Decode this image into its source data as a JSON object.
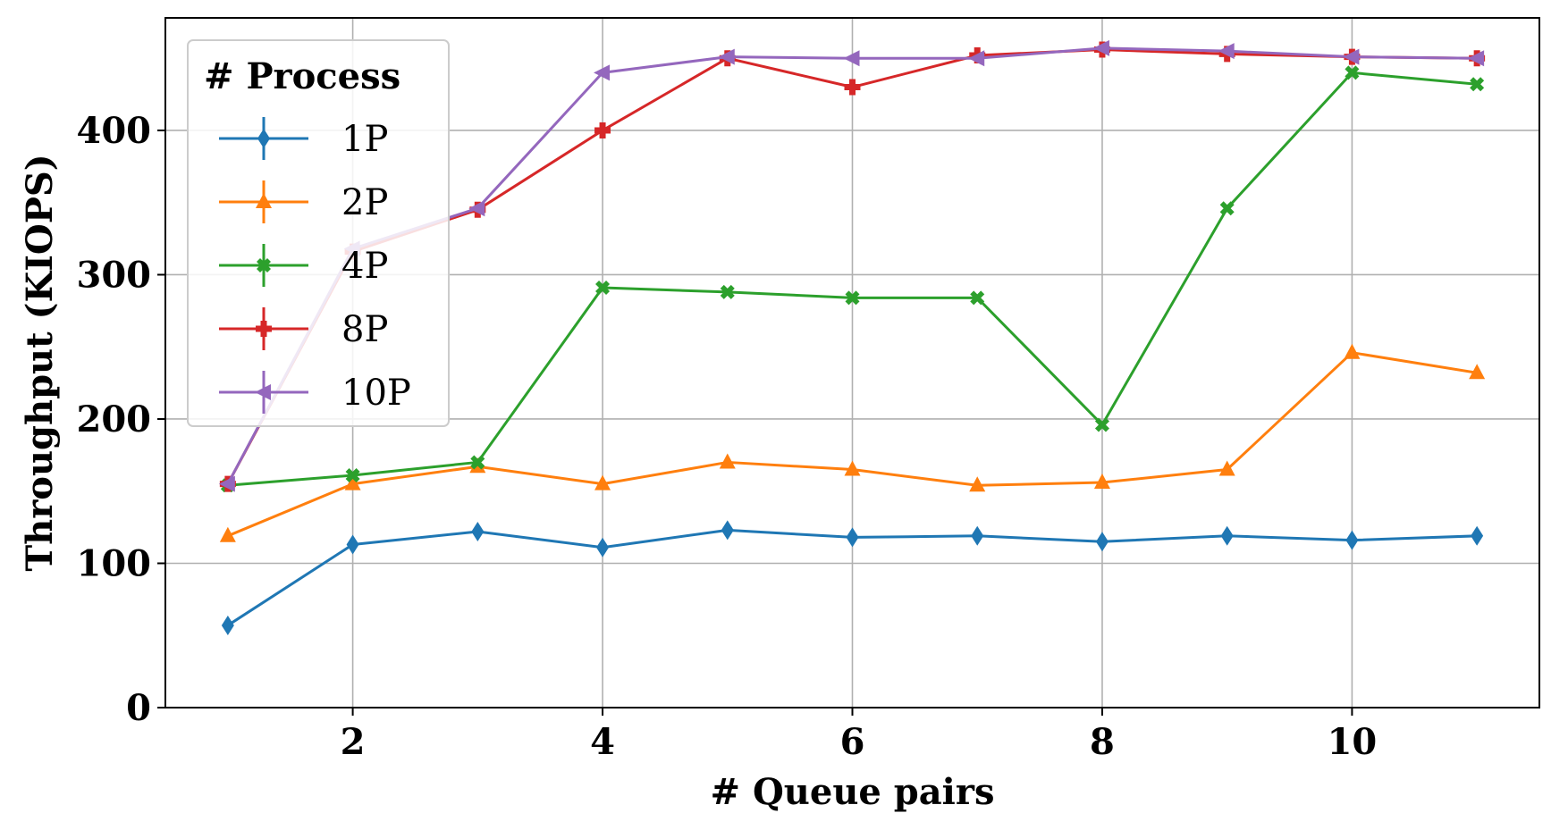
{
  "chart_data": {
    "type": "line",
    "xlabel": "# Queue pairs",
    "ylabel": "Throughput (KIOPS)",
    "x": [
      1,
      2,
      3,
      4,
      5,
      6,
      7,
      8,
      9,
      10,
      11
    ],
    "xlim": [
      0.5,
      11.5
    ],
    "ylim": [
      0,
      478
    ],
    "xticks": [
      2,
      4,
      6,
      8,
      10
    ],
    "yticks": [
      0,
      100,
      200,
      300,
      400
    ],
    "grid": true,
    "legend": {
      "title": "# Process",
      "placement": "top-left"
    },
    "series": [
      {
        "name": "1P",
        "color": "#1f77b4",
        "marker": "diamond",
        "values": [
          57,
          113,
          122,
          111,
          123,
          118,
          119,
          115,
          119,
          116,
          119
        ]
      },
      {
        "name": "2P",
        "color": "#ff7f0e",
        "marker": "triangle-up",
        "values": [
          119,
          155,
          167,
          155,
          170,
          165,
          154,
          156,
          165,
          246,
          232
        ]
      },
      {
        "name": "4P",
        "color": "#2ca02c",
        "marker": "x-filled",
        "values": [
          154,
          161,
          170,
          291,
          288,
          284,
          284,
          196,
          346,
          440,
          432
        ]
      },
      {
        "name": "8P",
        "color": "#d62728",
        "marker": "plus-filled",
        "values": [
          155,
          316,
          345,
          400,
          450,
          430,
          452,
          456,
          453,
          451,
          450
        ]
      },
      {
        "name": "10P",
        "color": "#9467bd",
        "marker": "triangle-left",
        "values": [
          155,
          318,
          346,
          440,
          451,
          450,
          450,
          457,
          455,
          451,
          450
        ]
      }
    ]
  }
}
